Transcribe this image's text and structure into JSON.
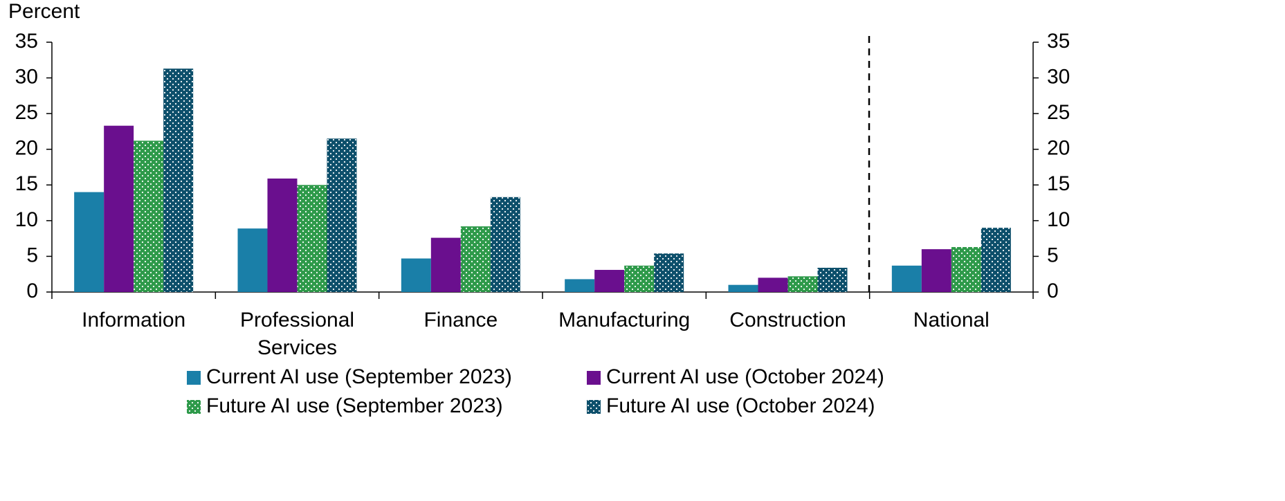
{
  "chart_data": {
    "type": "bar",
    "ylabel": "Percent",
    "categories": [
      "Information",
      "Professional Services",
      "Finance",
      "Manufacturing",
      "Construction",
      "National"
    ],
    "series": [
      {
        "name": "Current AI use (September 2023)",
        "color": "#1a7fa8",
        "pattern": "solid",
        "values": [
          14,
          8.9,
          4.7,
          1.8,
          1,
          3.7
        ]
      },
      {
        "name": "Current AI use (October 2024)",
        "color": "#6a0f8e",
        "pattern": "solid",
        "values": [
          23.3,
          15.9,
          7.6,
          3.1,
          2,
          6
        ]
      },
      {
        "name": "Future AI use (September 2023)",
        "color": "#2e9a4a",
        "pattern": "dots",
        "values": [
          21.2,
          15,
          9.2,
          3.7,
          2.2,
          6.3
        ]
      },
      {
        "name": "Future AI use (October 2024)",
        "color": "#0d4f6b",
        "pattern": "dots",
        "values": [
          31.3,
          21.5,
          13.3,
          5.4,
          3.4,
          9
        ]
      }
    ],
    "ylim": [
      0,
      35
    ],
    "yticks": [
      0,
      5,
      10,
      15,
      20,
      25,
      30,
      35
    ],
    "y2lim": [
      0,
      35
    ],
    "y2ticks": [
      0,
      5,
      10,
      15,
      20,
      25,
      30,
      35
    ]
  }
}
